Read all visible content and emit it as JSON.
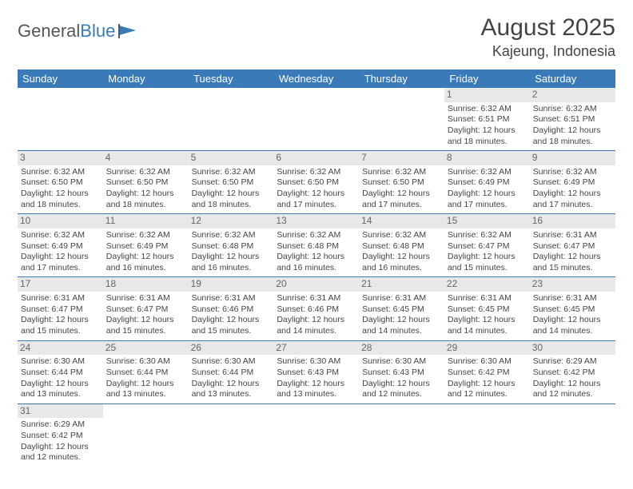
{
  "logo": {
    "text1": "General",
    "text2": "Blue"
  },
  "title": "August 2025",
  "location": "Kajeung, Indonesia",
  "colors": {
    "header_bg": "#3a7ab8",
    "daynum_bg": "#e8e8e8",
    "border": "#3a7ab8"
  },
  "weekdays": [
    "Sunday",
    "Monday",
    "Tuesday",
    "Wednesday",
    "Thursday",
    "Friday",
    "Saturday"
  ],
  "weeks": [
    [
      null,
      null,
      null,
      null,
      null,
      {
        "n": "1",
        "sr": "Sunrise: 6:32 AM",
        "ss": "Sunset: 6:51 PM",
        "dl": "Daylight: 12 hours and 18 minutes."
      },
      {
        "n": "2",
        "sr": "Sunrise: 6:32 AM",
        "ss": "Sunset: 6:51 PM",
        "dl": "Daylight: 12 hours and 18 minutes."
      }
    ],
    [
      {
        "n": "3",
        "sr": "Sunrise: 6:32 AM",
        "ss": "Sunset: 6:50 PM",
        "dl": "Daylight: 12 hours and 18 minutes."
      },
      {
        "n": "4",
        "sr": "Sunrise: 6:32 AM",
        "ss": "Sunset: 6:50 PM",
        "dl": "Daylight: 12 hours and 18 minutes."
      },
      {
        "n": "5",
        "sr": "Sunrise: 6:32 AM",
        "ss": "Sunset: 6:50 PM",
        "dl": "Daylight: 12 hours and 18 minutes."
      },
      {
        "n": "6",
        "sr": "Sunrise: 6:32 AM",
        "ss": "Sunset: 6:50 PM",
        "dl": "Daylight: 12 hours and 17 minutes."
      },
      {
        "n": "7",
        "sr": "Sunrise: 6:32 AM",
        "ss": "Sunset: 6:50 PM",
        "dl": "Daylight: 12 hours and 17 minutes."
      },
      {
        "n": "8",
        "sr": "Sunrise: 6:32 AM",
        "ss": "Sunset: 6:49 PM",
        "dl": "Daylight: 12 hours and 17 minutes."
      },
      {
        "n": "9",
        "sr": "Sunrise: 6:32 AM",
        "ss": "Sunset: 6:49 PM",
        "dl": "Daylight: 12 hours and 17 minutes."
      }
    ],
    [
      {
        "n": "10",
        "sr": "Sunrise: 6:32 AM",
        "ss": "Sunset: 6:49 PM",
        "dl": "Daylight: 12 hours and 17 minutes."
      },
      {
        "n": "11",
        "sr": "Sunrise: 6:32 AM",
        "ss": "Sunset: 6:49 PM",
        "dl": "Daylight: 12 hours and 16 minutes."
      },
      {
        "n": "12",
        "sr": "Sunrise: 6:32 AM",
        "ss": "Sunset: 6:48 PM",
        "dl": "Daylight: 12 hours and 16 minutes."
      },
      {
        "n": "13",
        "sr": "Sunrise: 6:32 AM",
        "ss": "Sunset: 6:48 PM",
        "dl": "Daylight: 12 hours and 16 minutes."
      },
      {
        "n": "14",
        "sr": "Sunrise: 6:32 AM",
        "ss": "Sunset: 6:48 PM",
        "dl": "Daylight: 12 hours and 16 minutes."
      },
      {
        "n": "15",
        "sr": "Sunrise: 6:32 AM",
        "ss": "Sunset: 6:47 PM",
        "dl": "Daylight: 12 hours and 15 minutes."
      },
      {
        "n": "16",
        "sr": "Sunrise: 6:31 AM",
        "ss": "Sunset: 6:47 PM",
        "dl": "Daylight: 12 hours and 15 minutes."
      }
    ],
    [
      {
        "n": "17",
        "sr": "Sunrise: 6:31 AM",
        "ss": "Sunset: 6:47 PM",
        "dl": "Daylight: 12 hours and 15 minutes."
      },
      {
        "n": "18",
        "sr": "Sunrise: 6:31 AM",
        "ss": "Sunset: 6:47 PM",
        "dl": "Daylight: 12 hours and 15 minutes."
      },
      {
        "n": "19",
        "sr": "Sunrise: 6:31 AM",
        "ss": "Sunset: 6:46 PM",
        "dl": "Daylight: 12 hours and 15 minutes."
      },
      {
        "n": "20",
        "sr": "Sunrise: 6:31 AM",
        "ss": "Sunset: 6:46 PM",
        "dl": "Daylight: 12 hours and 14 minutes."
      },
      {
        "n": "21",
        "sr": "Sunrise: 6:31 AM",
        "ss": "Sunset: 6:45 PM",
        "dl": "Daylight: 12 hours and 14 minutes."
      },
      {
        "n": "22",
        "sr": "Sunrise: 6:31 AM",
        "ss": "Sunset: 6:45 PM",
        "dl": "Daylight: 12 hours and 14 minutes."
      },
      {
        "n": "23",
        "sr": "Sunrise: 6:31 AM",
        "ss": "Sunset: 6:45 PM",
        "dl": "Daylight: 12 hours and 14 minutes."
      }
    ],
    [
      {
        "n": "24",
        "sr": "Sunrise: 6:30 AM",
        "ss": "Sunset: 6:44 PM",
        "dl": "Daylight: 12 hours and 13 minutes."
      },
      {
        "n": "25",
        "sr": "Sunrise: 6:30 AM",
        "ss": "Sunset: 6:44 PM",
        "dl": "Daylight: 12 hours and 13 minutes."
      },
      {
        "n": "26",
        "sr": "Sunrise: 6:30 AM",
        "ss": "Sunset: 6:44 PM",
        "dl": "Daylight: 12 hours and 13 minutes."
      },
      {
        "n": "27",
        "sr": "Sunrise: 6:30 AM",
        "ss": "Sunset: 6:43 PM",
        "dl": "Daylight: 12 hours and 13 minutes."
      },
      {
        "n": "28",
        "sr": "Sunrise: 6:30 AM",
        "ss": "Sunset: 6:43 PM",
        "dl": "Daylight: 12 hours and 12 minutes."
      },
      {
        "n": "29",
        "sr": "Sunrise: 6:30 AM",
        "ss": "Sunset: 6:42 PM",
        "dl": "Daylight: 12 hours and 12 minutes."
      },
      {
        "n": "30",
        "sr": "Sunrise: 6:29 AM",
        "ss": "Sunset: 6:42 PM",
        "dl": "Daylight: 12 hours and 12 minutes."
      }
    ],
    [
      {
        "n": "31",
        "sr": "Sunrise: 6:29 AM",
        "ss": "Sunset: 6:42 PM",
        "dl": "Daylight: 12 hours and 12 minutes."
      },
      null,
      null,
      null,
      null,
      null,
      null
    ]
  ]
}
